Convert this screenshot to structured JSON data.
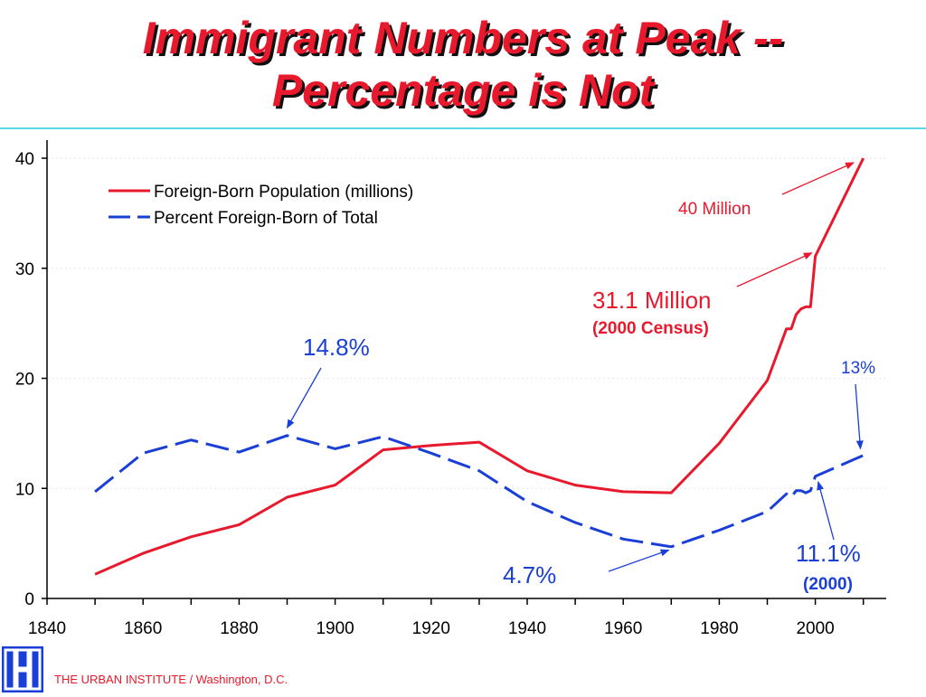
{
  "header": {
    "title_line1": "Immigrant Numbers at Peak --",
    "title_line2": "Percentage is Not"
  },
  "footer": {
    "text": "THE URBAN INSTITUTE / Washington, D.C."
  },
  "colors": {
    "foreign_born": "#e8192c",
    "percent": "#1a3fd6",
    "axis": "#000000"
  },
  "chart_data": {
    "type": "line",
    "xlim": [
      1840,
      2015
    ],
    "ylim": [
      0,
      40
    ],
    "x_ticks": [
      1840,
      1860,
      1880,
      1900,
      1920,
      1940,
      1960,
      1980,
      2000
    ],
    "y_ticks": [
      0,
      10,
      20,
      30,
      40
    ],
    "legend_position": "top-left",
    "series": [
      {
        "name": "Foreign-Born Population (millions)",
        "style": "solid",
        "x": [
          1850,
          1860,
          1870,
          1880,
          1890,
          1900,
          1910,
          1920,
          1930,
          1940,
          1950,
          1960,
          1970,
          1980,
          1990,
          1994,
          1995,
          1996,
          1997,
          1998,
          1999,
          2000,
          2010
        ],
        "y": [
          2.2,
          4.1,
          5.6,
          6.7,
          9.2,
          10.3,
          13.5,
          13.9,
          14.2,
          11.6,
          10.3,
          9.7,
          9.6,
          14.1,
          19.8,
          24.5,
          24.5,
          25.8,
          26.3,
          26.5,
          26.5,
          31.1,
          40.0
        ]
      },
      {
        "name": "Percent Foreign-Born of Total",
        "style": "dashed",
        "x": [
          1850,
          1860,
          1870,
          1880,
          1890,
          1900,
          1910,
          1920,
          1930,
          1940,
          1950,
          1960,
          1970,
          1980,
          1990,
          1994,
          1995,
          1996,
          1997,
          1998,
          1999,
          2000,
          2010
        ],
        "y": [
          9.7,
          13.2,
          14.4,
          13.3,
          14.8,
          13.6,
          14.7,
          13.2,
          11.6,
          8.8,
          6.9,
          5.4,
          4.7,
          6.2,
          7.9,
          9.5,
          9.2,
          9.8,
          9.8,
          9.6,
          9.8,
          11.1,
          13.0
        ]
      }
    ],
    "annotations": {
      "forty_million": "40 Million",
      "census_value": "31.1 Million",
      "census_note": "(2000 Census)",
      "peak_pct": "14.8%",
      "low_pct": "4.7%",
      "pct_2000": "11.1%",
      "pct_2000_note": "(2000)",
      "pct_2010": "13%"
    }
  }
}
